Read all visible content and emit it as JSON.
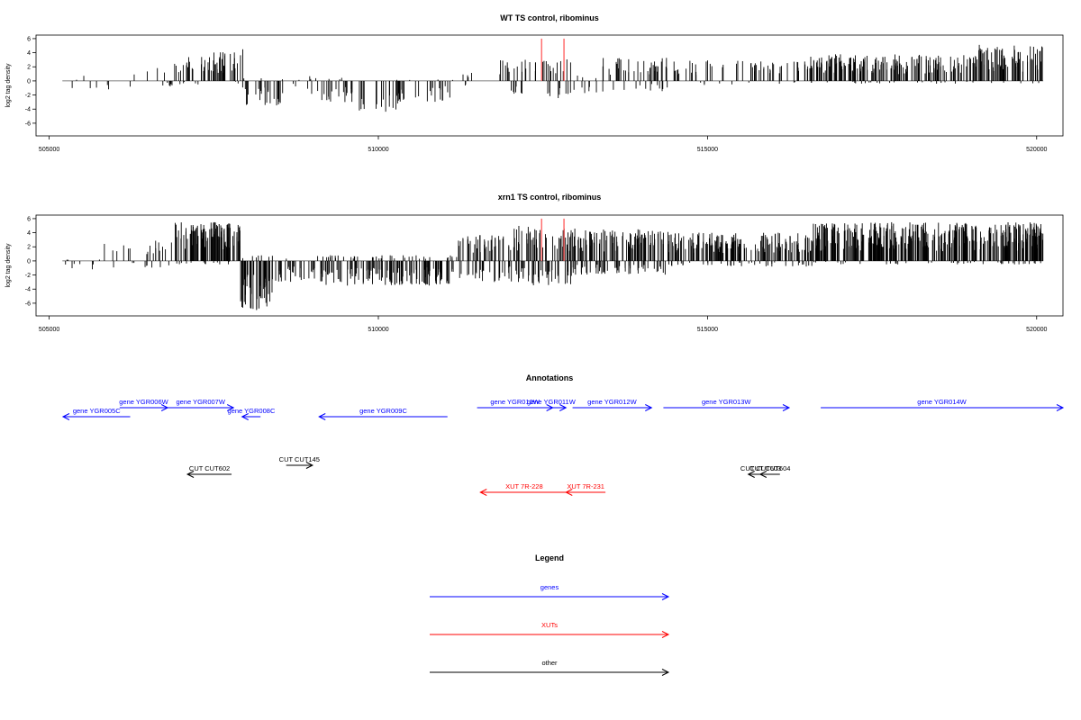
{
  "chart_data": [
    {
      "type": "bar",
      "title": "WT TS control, ribominus",
      "ylabel": "log2 tag density",
      "xlim": [
        504800,
        520400
      ],
      "ylim": [
        -7.8,
        6.5
      ],
      "xticks": [
        505000,
        510000,
        515000,
        520000
      ],
      "xtick_labels": [
        "505000",
        "510000",
        "515000",
        "520000"
      ],
      "yticks": [
        -6,
        -4,
        -2,
        0,
        2,
        4,
        6
      ],
      "ytick_labels": [
        "-6",
        "-4",
        "-2",
        "0",
        "2",
        "4",
        "6"
      ],
      "baseline": {
        "from": 505200,
        "to": 520100,
        "y": 0
      },
      "highlights": [
        {
          "x": 512480,
          "value": 6.0,
          "color": "#ff6666"
        },
        {
          "x": 512820,
          "value": 6.0,
          "color": "#ff6666"
        }
      ],
      "regions": [
        {
          "from": 505250,
          "to": 505450,
          "pos_max": 0.2,
          "neg_max": 2.5,
          "density": 0.01
        },
        {
          "from": 505500,
          "to": 506400,
          "pos_max": 1.2,
          "neg_max": 1.2,
          "density": 0.008
        },
        {
          "from": 506400,
          "to": 506900,
          "pos_max": 2.0,
          "neg_max": 1.0,
          "density": 0.02
        },
        {
          "from": 506900,
          "to": 507500,
          "pos_max": 3.5,
          "neg_max": 0.5,
          "density": 0.05
        },
        {
          "from": 507500,
          "to": 507850,
          "pos_max": 4.2,
          "neg_max": 0.3,
          "density": 0.07
        },
        {
          "from": 507850,
          "to": 507950,
          "pos_max": 5.0,
          "neg_max": 1.0,
          "density": 0.05
        },
        {
          "from": 507950,
          "to": 508600,
          "pos_max": 0.5,
          "neg_max": 3.5,
          "density": 0.04
        },
        {
          "from": 508600,
          "to": 508900,
          "pos_max": 0.2,
          "neg_max": 1.0,
          "density": 0.01
        },
        {
          "from": 508900,
          "to": 509700,
          "pos_max": 0.8,
          "neg_max": 3.0,
          "density": 0.035
        },
        {
          "from": 509700,
          "to": 510300,
          "pos_max": 0.3,
          "neg_max": 4.5,
          "density": 0.03
        },
        {
          "from": 510300,
          "to": 511200,
          "pos_max": 0.3,
          "neg_max": 3.0,
          "density": 0.03
        },
        {
          "from": 511200,
          "to": 511800,
          "pos_max": 1.2,
          "neg_max": 0.8,
          "density": 0.01
        },
        {
          "from": 511800,
          "to": 512400,
          "pos_max": 3.0,
          "neg_max": 2.0,
          "density": 0.04
        },
        {
          "from": 512400,
          "to": 512950,
          "pos_max": 3.5,
          "neg_max": 2.5,
          "density": 0.04
        },
        {
          "from": 512950,
          "to": 513400,
          "pos_max": 1.0,
          "neg_max": 2.0,
          "density": 0.02
        },
        {
          "from": 513400,
          "to": 514400,
          "pos_max": 3.3,
          "neg_max": 1.5,
          "density": 0.05
        },
        {
          "from": 514400,
          "to": 516500,
          "pos_max": 3.0,
          "neg_max": 0.6,
          "density": 0.03
        },
        {
          "from": 516500,
          "to": 519100,
          "pos_max": 3.8,
          "neg_max": 0.4,
          "density": 0.08
        },
        {
          "from": 519100,
          "to": 520100,
          "pos_max": 5.2,
          "neg_max": 0.4,
          "density": 0.08
        }
      ]
    },
    {
      "type": "bar",
      "title": "xrn1 TS control, ribominus",
      "ylabel": "log2 tag density",
      "xlim": [
        504800,
        520400
      ],
      "ylim": [
        -7.8,
        6.5
      ],
      "xticks": [
        505000,
        510000,
        515000,
        520000
      ],
      "xtick_labels": [
        "505000",
        "510000",
        "515000",
        "520000"
      ],
      "yticks": [
        -6,
        -4,
        -2,
        0,
        2,
        4,
        6
      ],
      "ytick_labels": [
        "-6",
        "-4",
        "-2",
        "0",
        "2",
        "4",
        "6"
      ],
      "baseline": {
        "from": 505200,
        "to": 520100,
        "y": 0
      },
      "highlights": [
        {
          "x": 512480,
          "value": 6.0,
          "color": "#ff6666"
        },
        {
          "x": 512820,
          "value": 6.0,
          "color": "#ff6666"
        }
      ],
      "regions": [
        {
          "from": 505200,
          "to": 505800,
          "pos_max": 0.3,
          "neg_max": 1.5,
          "density": 0.015
        },
        {
          "from": 505800,
          "to": 506500,
          "pos_max": 2.5,
          "neg_max": 1.0,
          "density": 0.02
        },
        {
          "from": 506500,
          "to": 506900,
          "pos_max": 3.0,
          "neg_max": 1.0,
          "density": 0.03
        },
        {
          "from": 506900,
          "to": 507900,
          "pos_max": 5.5,
          "neg_max": 0.5,
          "density": 0.12
        },
        {
          "from": 507900,
          "to": 508400,
          "pos_max": 1.0,
          "neg_max": 7.0,
          "density": 0.1
        },
        {
          "from": 508400,
          "to": 509000,
          "pos_max": 0.5,
          "neg_max": 3.0,
          "density": 0.04
        },
        {
          "from": 509000,
          "to": 511200,
          "pos_max": 0.8,
          "neg_max": 3.5,
          "density": 0.08
        },
        {
          "from": 511200,
          "to": 512000,
          "pos_max": 4.0,
          "neg_max": 3.0,
          "density": 0.08
        },
        {
          "from": 512000,
          "to": 513000,
          "pos_max": 5.0,
          "neg_max": 3.5,
          "density": 0.1
        },
        {
          "from": 513000,
          "to": 514400,
          "pos_max": 4.5,
          "neg_max": 2.0,
          "density": 0.1
        },
        {
          "from": 514400,
          "to": 516600,
          "pos_max": 4.0,
          "neg_max": 0.8,
          "density": 0.09
        },
        {
          "from": 516600,
          "to": 520100,
          "pos_max": 5.5,
          "neg_max": 0.5,
          "density": 0.12
        }
      ]
    }
  ],
  "annotations": {
    "title": "Annotations",
    "items": [
      {
        "label": "gene YGR005C",
        "from": 505210,
        "to": 506230,
        "strand": "-",
        "row": 1,
        "color": "#0000ff"
      },
      {
        "label": "gene YGR006W",
        "from": 506070,
        "to": 506800,
        "strand": "+",
        "row": 0,
        "color": "#0000ff"
      },
      {
        "label": "gene YGR007W",
        "from": 506800,
        "to": 507800,
        "strand": "+",
        "row": 0,
        "color": "#0000ff"
      },
      {
        "label": "gene YGR008C",
        "from": 507930,
        "to": 508210,
        "strand": "-",
        "row": 1,
        "color": "#0000ff"
      },
      {
        "label": "gene YGR009C",
        "from": 509100,
        "to": 511050,
        "strand": "-",
        "row": 1,
        "color": "#0000ff"
      },
      {
        "label": "gene YGR010W",
        "from": 511500,
        "to": 512650,
        "strand": "+",
        "row": 0,
        "color": "#0000ff"
      },
      {
        "label": "gene YGR011W",
        "from": 512400,
        "to": 512850,
        "strand": "+",
        "row": 0,
        "color": "#0000ff"
      },
      {
        "label": "gene YGR012W",
        "from": 512950,
        "to": 514150,
        "strand": "+",
        "row": 0,
        "color": "#0000ff"
      },
      {
        "label": "gene YGR013W",
        "from": 514330,
        "to": 516240,
        "strand": "+",
        "row": 0,
        "color": "#0000ff"
      },
      {
        "label": "gene YGR014W",
        "from": 516720,
        "to": 520400,
        "strand": "+",
        "row": 0,
        "color": "#0000ff"
      },
      {
        "label": "CUT CUT145",
        "from": 508600,
        "to": 509000,
        "strand": "+",
        "row": 2,
        "color": "#000000"
      },
      {
        "label": "CUT CUT602",
        "from": 507100,
        "to": 507770,
        "strand": "-",
        "row": 3,
        "color": "#000000"
      },
      {
        "label": "CUT CUT603",
        "from": 515620,
        "to": 516000,
        "strand": "-",
        "row": 3,
        "color": "#000000"
      },
      {
        "label": "CUT CUT604",
        "from": 515800,
        "to": 516100,
        "strand": "-",
        "row": 3,
        "color": "#000000"
      },
      {
        "label": "XUT 7R-228",
        "from": 511550,
        "to": 512880,
        "strand": "-",
        "row": 4,
        "color": "#ff0000"
      },
      {
        "label": "XUT 7R-231",
        "from": 512850,
        "to": 513450,
        "strand": "-",
        "row": 4,
        "color": "#ff0000"
      }
    ]
  },
  "legend": {
    "title": "Legend",
    "entries": [
      {
        "label": "genes",
        "color": "#0000ff"
      },
      {
        "label": "XUTs",
        "color": "#ff0000"
      },
      {
        "label": "other",
        "color": "#000000"
      }
    ]
  }
}
